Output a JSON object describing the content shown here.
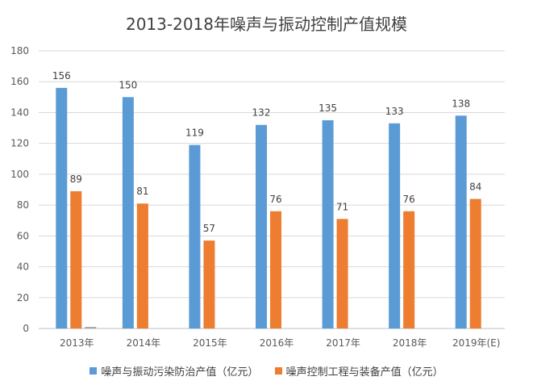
{
  "chart_data": {
    "type": "bar",
    "title": "2013-2018年噪声与振动控制产值规模",
    "categories": [
      "2013年",
      "2014年",
      "2015年",
      "2016年",
      "2017年",
      "2018年",
      "2019年(E)"
    ],
    "series": [
      {
        "name": "噪声与振动污染防治产值（亿元）",
        "color": "#5B9BD5",
        "values": [
          156,
          150,
          119,
          132,
          135,
          133,
          138
        ]
      },
      {
        "name": "噪声控制工程与装备产值（亿元）",
        "color": "#ED7D31",
        "values": [
          89,
          81,
          57,
          76,
          71,
          76,
          84
        ]
      },
      {
        "name": "",
        "color": "#A5A5A5",
        "values": [
          1,
          0,
          0,
          0,
          0,
          0,
          0
        ]
      }
    ],
    "ylim": [
      0,
      180
    ],
    "yticks": [
      0,
      20,
      40,
      60,
      80,
      100,
      120,
      140,
      160,
      180
    ],
    "grid": true,
    "legend_position": "bottom"
  }
}
